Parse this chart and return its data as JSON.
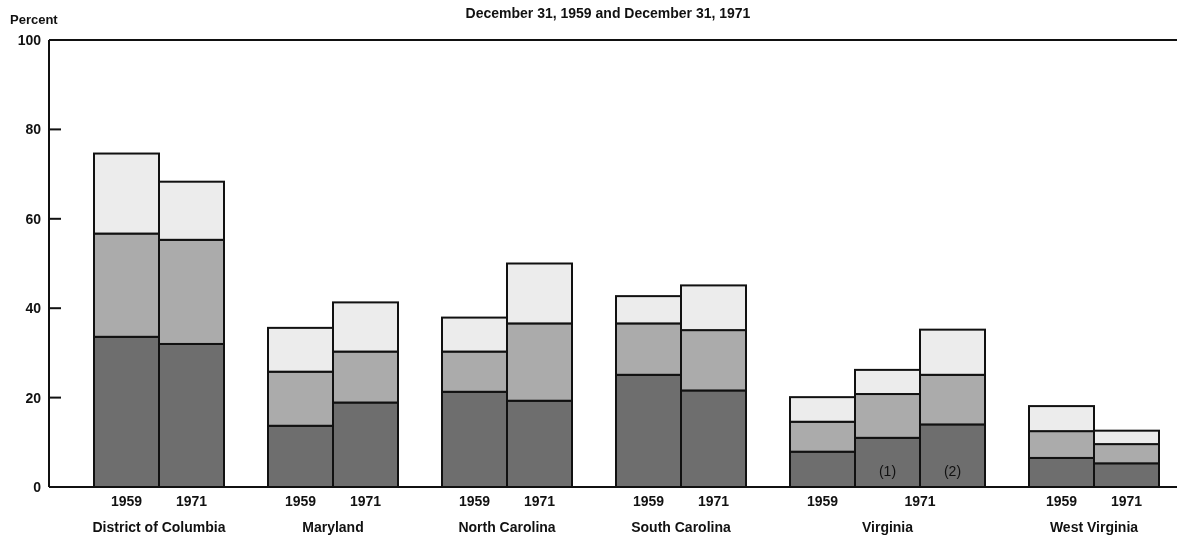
{
  "chart_data": {
    "type": "bar",
    "title": "December 31, 1959 and December 31, 1971",
    "ylabel": "Percent",
    "categories": [
      "1959",
      "1971",
      "1959",
      "1971",
      "1959",
      "1971",
      "1959",
      "1971",
      "1959",
      null,
      null,
      "1959",
      "1971"
    ],
    "stacked": true,
    "series": [
      {
        "color": "#6e6e6e",
        "values": [
          33.6,
          32.0,
          13.7,
          18.9,
          21.3,
          19.3,
          25.1,
          21.6,
          7.9,
          11.0,
          14.0,
          6.5,
          5.3
        ]
      },
      {
        "color": "#ababab",
        "values": [
          23.1,
          23.3,
          12.1,
          11.4,
          9.0,
          17.3,
          11.5,
          13.5,
          6.7,
          9.8,
          11.1,
          6.0,
          4.3
        ]
      },
      {
        "color": "#ececec",
        "values": [
          17.9,
          13.0,
          9.8,
          11.0,
          7.6,
          13.4,
          6.1,
          10.0,
          5.5,
          5.4,
          10.1,
          5.6,
          3.0
        ]
      }
    ],
    "ylim": [
      0,
      100
    ],
    "yticks": [
      0,
      20,
      40,
      60,
      80,
      100
    ],
    "grid": false,
    "annotations": [
      "District of Columbia",
      "Maryland",
      "North Carolina",
      "South Carolina",
      "Virginia",
      "West Virginia",
      "1971",
      "(1)",
      "(2)"
    ]
  }
}
